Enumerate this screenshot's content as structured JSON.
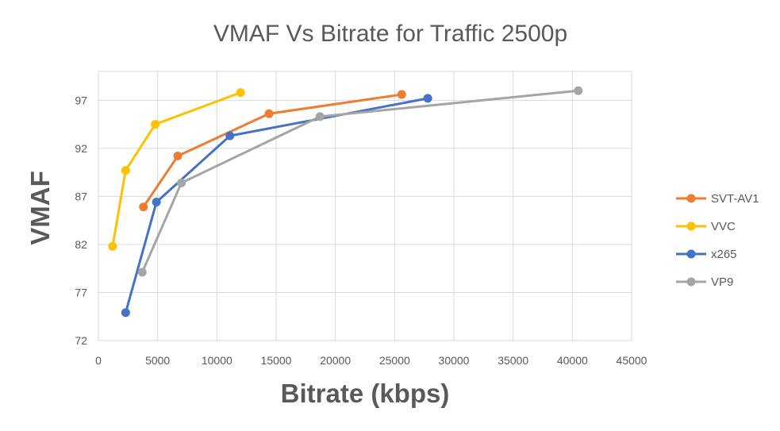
{
  "chart_data": {
    "type": "line",
    "title": "VMAF Vs Bitrate for Traffic 2500p",
    "xlabel": "Bitrate (kbps)",
    "ylabel": "VMAF",
    "xlim": [
      0,
      45000
    ],
    "ylim": [
      72,
      100
    ],
    "xticks": [
      0,
      5000,
      10000,
      15000,
      20000,
      25000,
      30000,
      35000,
      40000,
      45000
    ],
    "yticks": [
      72,
      77,
      82,
      87,
      92,
      97
    ],
    "grid": true,
    "legend_position": "right",
    "series": [
      {
        "name": "SVT-AV1",
        "color": "#ED7D31",
        "x": [
          3800,
          6700,
          14400,
          25600
        ],
        "y": [
          85.9,
          91.2,
          95.6,
          97.6
        ]
      },
      {
        "name": "VVC",
        "color": "#FFC000",
        "x": [
          1200,
          2300,
          4800,
          12000
        ],
        "y": [
          81.8,
          89.7,
          94.5,
          97.8
        ]
      },
      {
        "name": "x265",
        "color": "#4472C4",
        "x": [
          2300,
          4900,
          11100,
          27800
        ],
        "y": [
          74.9,
          86.4,
          93.3,
          97.2
        ]
      },
      {
        "name": "VP9",
        "color": "#A5A5A5",
        "x": [
          3700,
          7000,
          18700,
          40500
        ],
        "y": [
          79.1,
          88.4,
          95.3,
          98.0
        ]
      }
    ]
  }
}
